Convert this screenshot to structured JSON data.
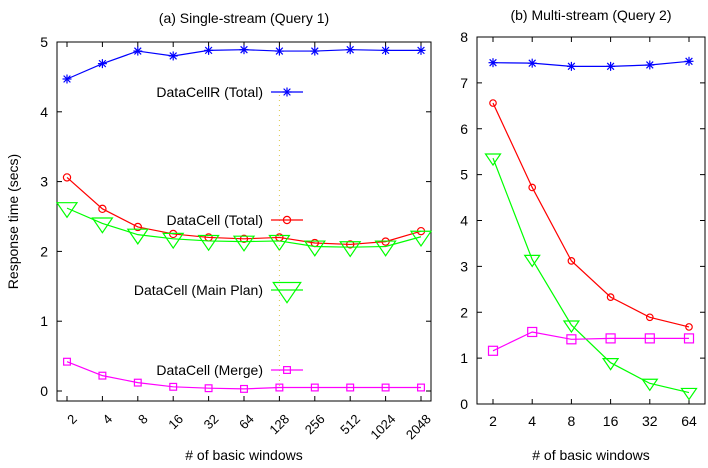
{
  "chart_data": [
    {
      "type": "line",
      "title": "(a) Single-stream (Query 1)",
      "xlabel": "# of basic windows",
      "ylabel": "Response time (secs)",
      "x_scale": "log2",
      "categories": [
        "2",
        "4",
        "8",
        "16",
        "32",
        "64",
        "128",
        "256",
        "512",
        "1024",
        "2048"
      ],
      "ylim": [
        0,
        5
      ],
      "yticks": [
        "0",
        "1",
        "2",
        "3",
        "4",
        "5"
      ],
      "legend_position": "inline, right of center",
      "series": [
        {
          "name": "DataCellR (Total)",
          "marker": "asterisk",
          "color": "#0000ff",
          "values": [
            4.47,
            4.69,
            4.87,
            4.8,
            4.88,
            4.89,
            4.87,
            4.87,
            4.89,
            4.88,
            4.88
          ]
        },
        {
          "name": "DataCell (Total)",
          "marker": "circle",
          "color": "#ff0000",
          "values": [
            3.06,
            2.61,
            2.35,
            2.25,
            2.2,
            2.18,
            2.2,
            2.12,
            2.1,
            2.14,
            2.29
          ]
        },
        {
          "name": "DataCell (Main Plan)",
          "marker": "triangle-down",
          "color": "#00ff00",
          "values": [
            2.62,
            2.4,
            2.24,
            2.18,
            2.15,
            2.14,
            2.15,
            2.07,
            2.06,
            2.07,
            2.21
          ]
        },
        {
          "name": "DataCell (Merge)",
          "marker": "square",
          "color": "#ff00ff",
          "values": [
            0.42,
            0.22,
            0.12,
            0.06,
            0.04,
            0.03,
            0.05,
            0.05,
            0.05,
            0.05,
            0.05
          ]
        }
      ]
    },
    {
      "type": "line",
      "title": "(b) Multi-stream (Query 2)",
      "xlabel": "# of basic windows",
      "ylabel": "",
      "x_scale": "log2",
      "categories": [
        "2",
        "4",
        "8",
        "16",
        "32",
        "64"
      ],
      "ylim": [
        0,
        8
      ],
      "yticks": [
        "0",
        "1",
        "2",
        "3",
        "4",
        "5",
        "6",
        "7",
        "8"
      ],
      "series": [
        {
          "name": "DataCellR (Total)",
          "marker": "asterisk",
          "color": "#0000ff",
          "values": [
            7.44,
            7.43,
            7.36,
            7.36,
            7.39,
            7.47
          ]
        },
        {
          "name": "DataCell (Total)",
          "marker": "circle",
          "color": "#ff0000",
          "values": [
            6.56,
            4.72,
            3.12,
            2.33,
            1.89,
            1.68
          ]
        },
        {
          "name": "DataCell (Main Plan)",
          "marker": "triangle-down",
          "color": "#00ff00",
          "values": [
            5.36,
            3.15,
            1.72,
            0.9,
            0.45,
            0.25
          ]
        },
        {
          "name": "DataCell (Merge)",
          "marker": "square",
          "color": "#ff00ff",
          "values": [
            1.16,
            1.57,
            1.41,
            1.43,
            1.43,
            1.43
          ]
        }
      ]
    }
  ]
}
